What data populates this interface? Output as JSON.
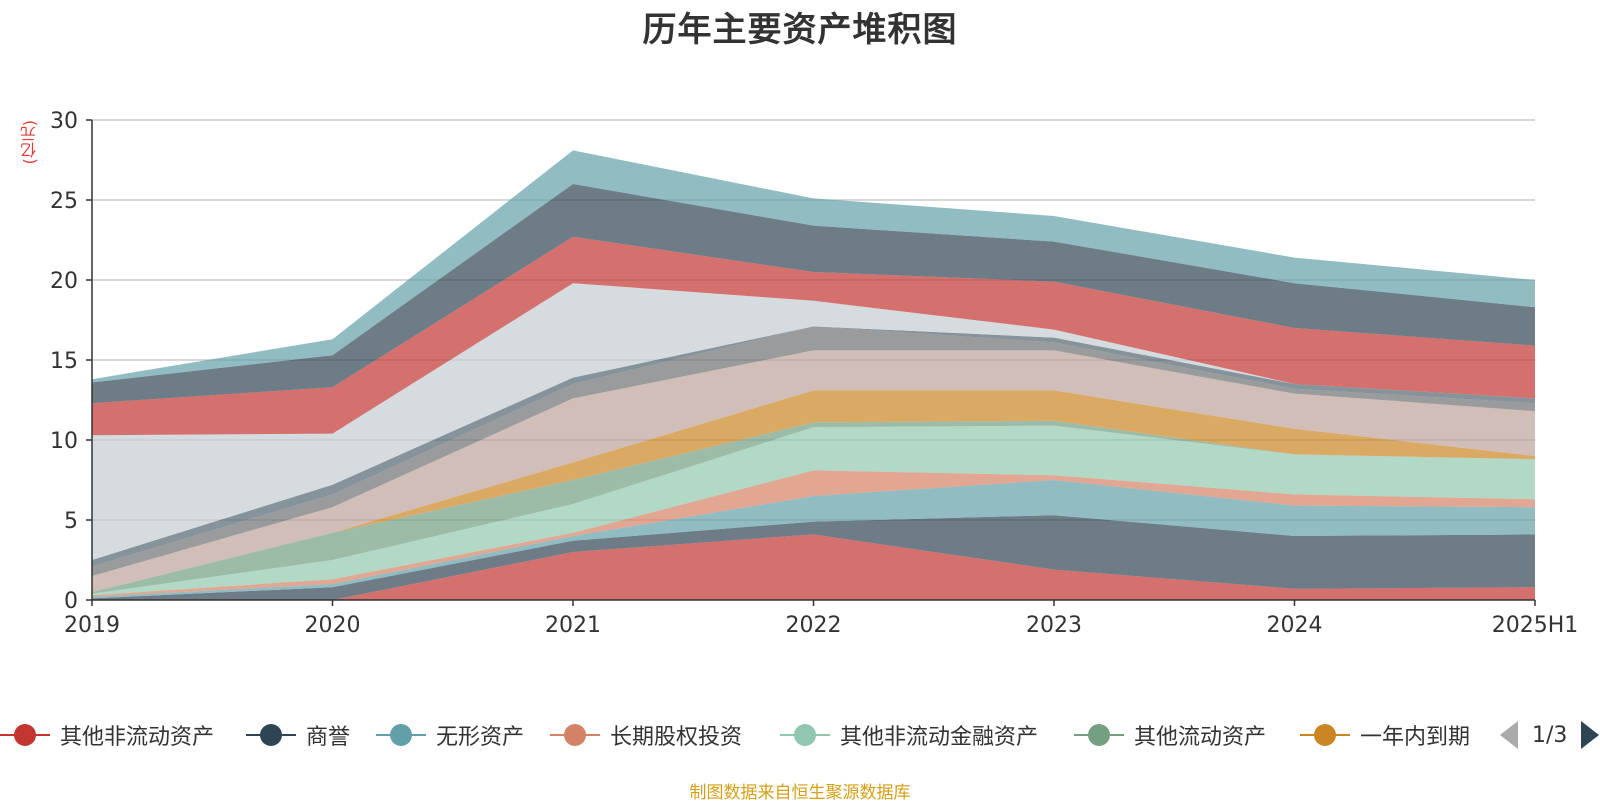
{
  "chart_data": {
    "type": "area",
    "stacked": true,
    "title": "历年主要资产堆积图",
    "unit": "(亿元)",
    "x": [
      "2019",
      "2020",
      "2021",
      "2022",
      "2023",
      "2024",
      "2025H1"
    ],
    "ylim": [
      0,
      30
    ],
    "yticks": [
      0,
      5,
      10,
      15,
      20,
      25,
      30
    ],
    "grid": true,
    "series": [
      {
        "name": "其他非流动资产",
        "color": "#c23531",
        "values": [
          0.0,
          0.0,
          3.0,
          4.1,
          1.9,
          0.7,
          0.8
        ]
      },
      {
        "name": "商誉",
        "color": "#2f4554",
        "values": [
          0.1,
          0.8,
          0.7,
          0.8,
          3.4,
          3.3,
          3.3
        ]
      },
      {
        "name": "无形资产",
        "color": "#61a0a8",
        "values": [
          0.1,
          0.2,
          0.3,
          1.6,
          2.2,
          1.9,
          1.7
        ]
      },
      {
        "name": "长期股权投资",
        "color": "#d48265",
        "values": [
          0.1,
          0.3,
          0.2,
          1.6,
          0.3,
          0.7,
          0.5
        ]
      },
      {
        "name": "其他非流动金融资产",
        "color": "#91c7ae",
        "values": [
          0.1,
          1.2,
          1.8,
          2.7,
          3.1,
          2.5,
          2.5
        ]
      },
      {
        "name": "其他流动资产",
        "color": "#749f83",
        "values": [
          0.1,
          1.7,
          1.5,
          0.3,
          0.3,
          0.0,
          0.0
        ]
      },
      {
        "name": "一年内到期",
        "color": "#ca8622",
        "values": [
          0.0,
          0.0,
          1.1,
          2.0,
          1.9,
          1.6,
          0.2
        ]
      },
      {
        "name": "",
        "color": "#bda29a",
        "values": [
          1.0,
          1.6,
          4.0,
          2.5,
          2.5,
          2.2,
          2.8
        ]
      },
      {
        "name": "",
        "color": "#6e7074",
        "values": [
          0.6,
          0.8,
          0.9,
          1.5,
          0.5,
          0.3,
          0.5
        ]
      },
      {
        "name": "",
        "color": "#546570",
        "values": [
          0.4,
          0.6,
          0.4,
          0.0,
          0.3,
          0.3,
          0.3
        ]
      },
      {
        "name": "",
        "color": "#c4ccd3",
        "values": [
          7.8,
          3.2,
          5.9,
          1.6,
          0.5,
          0.0,
          0.0
        ]
      },
      {
        "name": "",
        "color": "#c23531",
        "values": [
          2.0,
          2.9,
          2.9,
          1.8,
          3.0,
          3.5,
          3.3
        ]
      },
      {
        "name": "",
        "color": "#2f4554",
        "values": [
          1.3,
          2.0,
          3.3,
          2.9,
          2.5,
          2.8,
          2.4
        ]
      },
      {
        "name": "",
        "color": "#61a0a8",
        "values": [
          0.2,
          1.0,
          2.1,
          1.7,
          1.6,
          1.6,
          1.7
        ]
      }
    ]
  },
  "legend": {
    "items": [
      {
        "label": "其他非流动资产",
        "color": "#c23531"
      },
      {
        "label": "商誉",
        "color": "#2f4554"
      },
      {
        "label": "无形资产",
        "color": "#61a0a8"
      },
      {
        "label": "长期股权投资",
        "color": "#d48265"
      },
      {
        "label": "其他非流动金融资产",
        "color": "#91c7ae"
      },
      {
        "label": "其他流动资产",
        "color": "#749f83"
      },
      {
        "label": "一年内到期",
        "color": "#ca8622"
      }
    ],
    "page": "1/3"
  },
  "footer": "制图数据来自恒生聚源数据库"
}
